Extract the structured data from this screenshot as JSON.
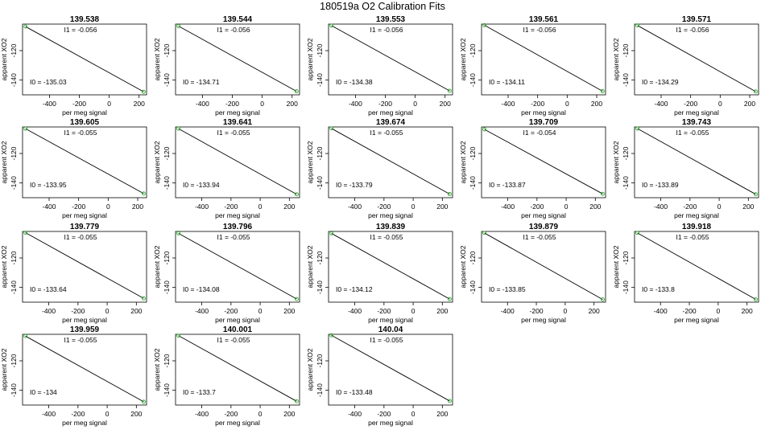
{
  "figure_title": "180519a   O2 Calibration Fits",
  "xlabel": "per meg signal",
  "ylabel": "apparent XO2",
  "i1_prefix": "I1 =",
  "i0_prefix": "I0 =",
  "line_color": "#000000",
  "point_color": "#22aa22",
  "chart_data": [
    {
      "type": "line",
      "title": "139.538",
      "xlabel": "per meg signal",
      "ylabel": "apparent XO2",
      "x": [
        -560,
        230
      ],
      "y": [
        -103.67,
        -147.91
      ],
      "I1": "-0.056",
      "I0": "-135.03",
      "xticks": [
        -400,
        -200,
        0,
        200
      ],
      "yticks": [
        -120,
        -140
      ],
      "xlim": [
        -580,
        250
      ],
      "ylim": [
        -150,
        -102
      ]
    },
    {
      "type": "line",
      "title": "139.544",
      "xlabel": "per meg signal",
      "ylabel": "apparent XO2",
      "x": [
        -560,
        230
      ],
      "y": [
        -103.35,
        -147.59
      ],
      "I1": "-0.056",
      "I0": "-134.71",
      "xticks": [
        -400,
        -200,
        0,
        200
      ],
      "yticks": [
        -120,
        -140
      ],
      "xlim": [
        -580,
        250
      ],
      "ylim": [
        -150,
        -102
      ]
    },
    {
      "type": "line",
      "title": "139.553",
      "xlabel": "per meg signal",
      "ylabel": "apparent XO2",
      "x": [
        -560,
        230
      ],
      "y": [
        -103.02,
        -147.26
      ],
      "I1": "-0.056",
      "I0": "-134.38",
      "xticks": [
        -400,
        -200,
        0,
        200
      ],
      "yticks": [
        -120,
        -140
      ],
      "xlim": [
        -580,
        250
      ],
      "ylim": [
        -150,
        -102
      ]
    },
    {
      "type": "line",
      "title": "139.561",
      "xlabel": "per meg signal",
      "ylabel": "apparent XO2",
      "x": [
        -560,
        240
      ],
      "y": [
        -102.75,
        -147.55
      ],
      "I1": "-0.056",
      "I0": "-134.11",
      "xticks": [
        -400,
        -200,
        0,
        200
      ],
      "yticks": [
        -120,
        -140
      ],
      "xlim": [
        -580,
        260
      ],
      "ylim": [
        -150,
        -102
      ]
    },
    {
      "type": "line",
      "title": "139.571",
      "xlabel": "per meg signal",
      "ylabel": "apparent XO2",
      "x": [
        -560,
        240
      ],
      "y": [
        -102.93,
        -147.73
      ],
      "I1": "-0.056",
      "I0": "-134.29",
      "xticks": [
        -400,
        -200,
        0,
        200
      ],
      "yticks": [
        -120,
        -140
      ],
      "xlim": [
        -580,
        260
      ],
      "ylim": [
        -150,
        -102
      ]
    },
    {
      "type": "line",
      "title": "139.605",
      "xlabel": "per meg signal",
      "ylabel": "apparent XO2",
      "x": [
        -560,
        240
      ],
      "y": [
        -103.15,
        -147.15
      ],
      "I1": "-0.055",
      "I0": "-133.95",
      "xticks": [
        -400,
        -200,
        0,
        200
      ],
      "yticks": [
        -120,
        -140
      ],
      "xlim": [
        -580,
        260
      ],
      "ylim": [
        -150,
        -102
      ]
    },
    {
      "type": "line",
      "title": "139.641",
      "xlabel": "per meg signal",
      "ylabel": "apparent XO2",
      "x": [
        -560,
        250
      ],
      "y": [
        -103.14,
        -147.69
      ],
      "I1": "-0.055",
      "I0": "-133.94",
      "xticks": [
        -400,
        -200,
        0,
        200
      ],
      "yticks": [
        -120,
        -140
      ],
      "xlim": [
        -580,
        270
      ],
      "ylim": [
        -150,
        -102
      ]
    },
    {
      "type": "line",
      "title": "139.674",
      "xlabel": "per meg signal",
      "ylabel": "apparent XO2",
      "x": [
        -560,
        250
      ],
      "y": [
        -102.99,
        -147.54
      ],
      "I1": "-0.055",
      "I0": "-133.79",
      "xticks": [
        -400,
        -200,
        0,
        200
      ],
      "yticks": [
        -120,
        -140
      ],
      "xlim": [
        -580,
        270
      ],
      "ylim": [
        -150,
        -102
      ]
    },
    {
      "type": "line",
      "title": "139.709",
      "xlabel": "per meg signal",
      "ylabel": "apparent XO2",
      "x": [
        -560,
        250
      ],
      "y": [
        -103.63,
        -147.37
      ],
      "I1": "-0.054",
      "I0": "-133.87",
      "xticks": [
        -400,
        -200,
        0,
        200
      ],
      "yticks": [
        -120,
        -140
      ],
      "xlim": [
        -580,
        270
      ],
      "ylim": [
        -150,
        -102
      ]
    },
    {
      "type": "line",
      "title": "139.743",
      "xlabel": "per meg signal",
      "ylabel": "apparent XO2",
      "x": [
        -560,
        250
      ],
      "y": [
        -103.09,
        -147.64
      ],
      "I1": "-0.055",
      "I0": "-133.89",
      "xticks": [
        -400,
        -200,
        0,
        200
      ],
      "yticks": [
        -120,
        -140
      ],
      "xlim": [
        -580,
        270
      ],
      "ylim": [
        -150,
        -102
      ]
    },
    {
      "type": "line",
      "title": "139.779",
      "xlabel": "per meg signal",
      "ylabel": "apparent XO2",
      "x": [
        -560,
        250
      ],
      "y": [
        -102.84,
        -147.39
      ],
      "I1": "-0.055",
      "I0": "-133.64",
      "xticks": [
        -400,
        -200,
        0,
        200
      ],
      "yticks": [
        -120,
        -140
      ],
      "xlim": [
        -580,
        270
      ],
      "ylim": [
        -150,
        -102
      ]
    },
    {
      "type": "line",
      "title": "139.796",
      "xlabel": "per meg signal",
      "ylabel": "apparent XO2",
      "x": [
        -560,
        250
      ],
      "y": [
        -103.28,
        -147.83
      ],
      "I1": "-0.055",
      "I0": "-134.08",
      "xticks": [
        -400,
        -200,
        0,
        200
      ],
      "yticks": [
        -120,
        -140
      ],
      "xlim": [
        -580,
        270
      ],
      "ylim": [
        -150,
        -102
      ]
    },
    {
      "type": "line",
      "title": "139.839",
      "xlabel": "per meg signal",
      "ylabel": "apparent XO2",
      "x": [
        -560,
        250
      ],
      "y": [
        -103.32,
        -147.87
      ],
      "I1": "-0.055",
      "I0": "-134.12",
      "xticks": [
        -400,
        -200,
        0,
        200
      ],
      "yticks": [
        -120,
        -140
      ],
      "xlim": [
        -580,
        270
      ],
      "ylim": [
        -150,
        -102
      ]
    },
    {
      "type": "line",
      "title": "139.879",
      "xlabel": "per meg signal",
      "ylabel": "apparent XO2",
      "x": [
        -560,
        260
      ],
      "y": [
        -103.05,
        -148.15
      ],
      "I1": "-0.055",
      "I0": "-133.85",
      "xticks": [
        -400,
        -200,
        0,
        200
      ],
      "yticks": [
        -120,
        -140
      ],
      "xlim": [
        -580,
        280
      ],
      "ylim": [
        -150,
        -102
      ]
    },
    {
      "type": "line",
      "title": "139.918",
      "xlabel": "per meg signal",
      "ylabel": "apparent XO2",
      "x": [
        -560,
        260
      ],
      "y": [
        -103.0,
        -148.1
      ],
      "I1": "-0.055",
      "I0": "-133.8",
      "xticks": [
        -400,
        -200,
        0,
        200
      ],
      "yticks": [
        -120,
        -140
      ],
      "xlim": [
        -580,
        280
      ],
      "ylim": [
        -150,
        -102
      ]
    },
    {
      "type": "line",
      "title": "139.959",
      "xlabel": "per meg signal",
      "ylabel": "apparent XO2",
      "x": [
        -560,
        250
      ],
      "y": [
        -103.2,
        -147.75
      ],
      "I1": "-0.055",
      "I0": "-134",
      "xticks": [
        -400,
        -200,
        0,
        200
      ],
      "yticks": [
        -120,
        -140
      ],
      "xlim": [
        -580,
        270
      ],
      "ylim": [
        -150,
        -102
      ]
    },
    {
      "type": "line",
      "title": "140.001",
      "xlabel": "per meg signal",
      "ylabel": "apparent XO2",
      "x": [
        -560,
        250
      ],
      "y": [
        -102.9,
        -147.45
      ],
      "I1": "-0.055",
      "I0": "-133.7",
      "xticks": [
        -400,
        -200,
        0,
        200
      ],
      "yticks": [
        -120,
        -140
      ],
      "xlim": [
        -580,
        270
      ],
      "ylim": [
        -150,
        -102
      ]
    },
    {
      "type": "line",
      "title": "140.04",
      "xlabel": "per meg signal",
      "ylabel": "apparent XO2",
      "x": [
        -560,
        250
      ],
      "y": [
        -102.68,
        -147.23
      ],
      "I1": "-0.055",
      "I0": "-133.48",
      "xticks": [
        -400,
        -200,
        0,
        200
      ],
      "yticks": [
        -120,
        -140
      ],
      "xlim": [
        -580,
        270
      ],
      "ylim": [
        -150,
        -102
      ]
    }
  ]
}
